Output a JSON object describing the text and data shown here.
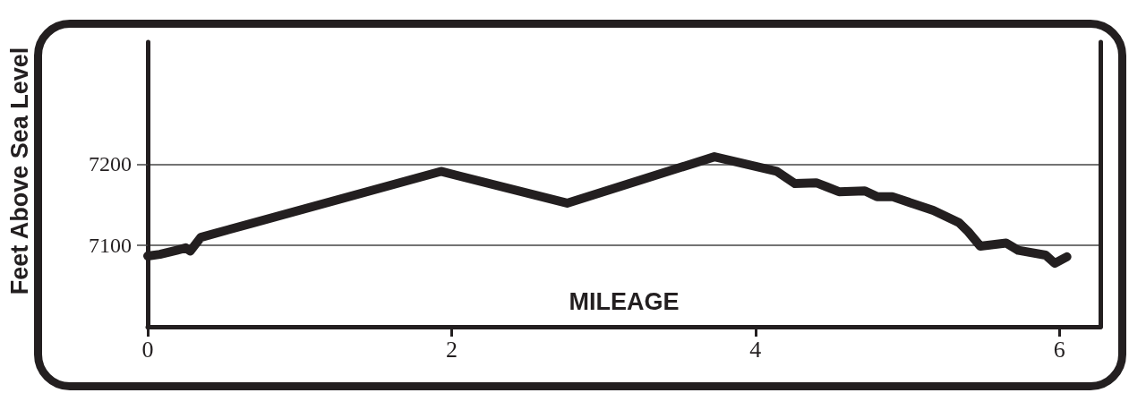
{
  "chart_data": {
    "type": "line",
    "xlabel": "MILEAGE",
    "ylabel": "Feet Above Sea Level",
    "x": [
      0,
      0.08,
      0.19,
      0.25,
      0.28,
      0.35,
      1.93,
      2.76,
      3.73,
      4.14,
      4.26,
      4.4,
      4.47,
      4.55,
      4.72,
      4.8,
      4.9,
      5.17,
      5.34,
      5.4,
      5.48,
      5.65,
      5.73,
      5.91,
      5.97,
      6.05
    ],
    "series": [
      {
        "color": "#231f20",
        "values": [
          7087,
          7089,
          7094,
          7097,
          7093,
          7110,
          7191,
          7152,
          7209,
          7191,
          7176,
          7177,
          7172,
          7166,
          7167,
          7160,
          7160,
          7143,
          7128,
          7117,
          7099,
          7103,
          7094,
          7088,
          7078,
          7086
        ]
      }
    ],
    "xlim": [
      0,
      6.27
    ],
    "ylim": [
      7000,
      7350
    ],
    "xticks": [
      0,
      2,
      4,
      6
    ],
    "yticks": [
      7100,
      7200
    ],
    "grid": "y",
    "line_style": "solid"
  }
}
